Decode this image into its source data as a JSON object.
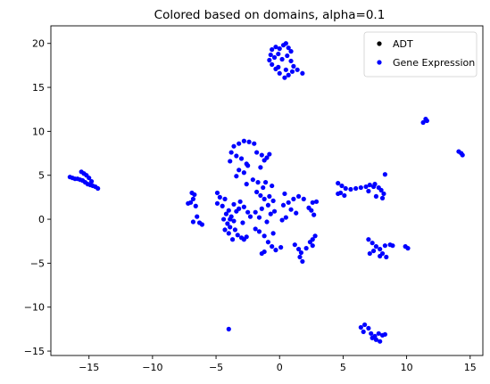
{
  "chart_data": {
    "type": "scatter",
    "title": "Colored based on domains, alpha=0.1",
    "xlabel": "",
    "ylabel": "",
    "xlim": [
      -18,
      16
    ],
    "ylim": [
      -15.5,
      22
    ],
    "xticks": [
      -15,
      -10,
      -5,
      0,
      5,
      10,
      15
    ],
    "yticks": [
      -15,
      -10,
      -5,
      0,
      5,
      10,
      15,
      20
    ],
    "grid": false,
    "legend_position": "top-right",
    "series": [
      {
        "name": "ADT",
        "color": "#000000",
        "points": []
      },
      {
        "name": "Gene Expression",
        "color": "#0000ff",
        "points": [
          [
            -16.5,
            4.8
          ],
          [
            -16.3,
            4.7
          ],
          [
            -16.1,
            4.6
          ],
          [
            -15.9,
            4.6
          ],
          [
            -15.7,
            4.5
          ],
          [
            -15.5,
            4.4
          ],
          [
            -15.3,
            4.2
          ],
          [
            -15.1,
            4.0
          ],
          [
            -14.9,
            3.9
          ],
          [
            -14.7,
            3.8
          ],
          [
            -14.5,
            3.7
          ],
          [
            -14.3,
            3.5
          ],
          [
            -15.6,
            5.4
          ],
          [
            -15.4,
            5.2
          ],
          [
            -15.2,
            5.0
          ],
          [
            -15.0,
            4.7
          ],
          [
            -14.8,
            4.3
          ],
          [
            -7.2,
            1.8
          ],
          [
            -7.0,
            1.9
          ],
          [
            -6.8,
            2.3
          ],
          [
            -6.7,
            2.8
          ],
          [
            -6.9,
            3.0
          ],
          [
            -6.6,
            1.5
          ],
          [
            -6.5,
            0.3
          ],
          [
            -6.3,
            -0.4
          ],
          [
            -6.8,
            -0.3
          ],
          [
            -6.1,
            -0.6
          ],
          [
            -4.9,
            3.0
          ],
          [
            -4.7,
            2.5
          ],
          [
            -4.3,
            2.3
          ],
          [
            -4.9,
            1.8
          ],
          [
            -4.5,
            1.5
          ],
          [
            -4.0,
            1.0
          ],
          [
            -4.2,
            0.6
          ],
          [
            -3.8,
            0.3
          ],
          [
            -4.4,
            0.0
          ],
          [
            -3.6,
            -0.2
          ],
          [
            -4.1,
            -0.5
          ],
          [
            -3.9,
            -0.9
          ],
          [
            -3.5,
            -1.2
          ],
          [
            -4.0,
            -1.6
          ],
          [
            -3.3,
            -1.8
          ],
          [
            -3.0,
            -2.1
          ],
          [
            -2.8,
            -2.3
          ],
          [
            -2.6,
            -2.0
          ],
          [
            -3.4,
            0.9
          ],
          [
            -3.2,
            1.2
          ],
          [
            -3.6,
            1.7
          ],
          [
            -3.1,
            2.0
          ],
          [
            -2.8,
            1.4
          ],
          [
            -2.5,
            0.8
          ],
          [
            -2.3,
            0.3
          ],
          [
            -2.9,
            -0.4
          ],
          [
            -3.7,
            -2.3
          ],
          [
            -3.9,
            0.0
          ],
          [
            -4.3,
            -1.2
          ],
          [
            -3.6,
            8.3
          ],
          [
            -3.2,
            8.6
          ],
          [
            -2.8,
            8.9
          ],
          [
            -2.4,
            8.8
          ],
          [
            -2.0,
            8.6
          ],
          [
            -3.8,
            7.6
          ],
          [
            -3.4,
            7.2
          ],
          [
            -3.0,
            6.9
          ],
          [
            -2.6,
            6.3
          ],
          [
            -3.2,
            5.6
          ],
          [
            -2.8,
            5.3
          ],
          [
            -2.5,
            6.1
          ],
          [
            -3.9,
            6.6
          ],
          [
            -1.8,
            7.6
          ],
          [
            -1.4,
            7.3
          ],
          [
            -1.0,
            7.0
          ],
          [
            -0.8,
            7.4
          ],
          [
            -1.2,
            6.7
          ],
          [
            -1.5,
            5.9
          ],
          [
            -2.1,
            4.5
          ],
          [
            -1.7,
            4.2
          ],
          [
            -2.6,
            4.0
          ],
          [
            -3.4,
            4.9
          ],
          [
            -1.8,
            3.1
          ],
          [
            -1.5,
            2.7
          ],
          [
            -1.2,
            2.3
          ],
          [
            -0.8,
            2.6
          ],
          [
            -0.5,
            2.1
          ],
          [
            -0.9,
            1.6
          ],
          [
            -1.4,
            1.2
          ],
          [
            -1.9,
            0.8
          ],
          [
            -1.6,
            0.2
          ],
          [
            -0.7,
            0.6
          ],
          [
            -0.4,
            0.9
          ],
          [
            -1.0,
            -0.3
          ],
          [
            -0.6,
            3.8
          ],
          [
            -1.1,
            4.2
          ],
          [
            -1.3,
            3.6
          ],
          [
            0.3,
            1.6
          ],
          [
            0.7,
            1.9
          ],
          [
            1.1,
            2.3
          ],
          [
            1.5,
            2.6
          ],
          [
            1.9,
            2.3
          ],
          [
            0.9,
            1.1
          ],
          [
            1.3,
            0.7
          ],
          [
            0.5,
            0.2
          ],
          [
            0.2,
            -0.1
          ],
          [
            0.4,
            2.9
          ],
          [
            2.6,
            1.9
          ],
          [
            2.9,
            2.0
          ],
          [
            2.3,
            1.3
          ],
          [
            2.5,
            1.0
          ],
          [
            2.7,
            0.5
          ],
          [
            -1.6,
            -1.4
          ],
          [
            -1.2,
            -1.9
          ],
          [
            -0.9,
            -2.6
          ],
          [
            -0.6,
            -3.1
          ],
          [
            -0.3,
            -3.5
          ],
          [
            0.1,
            -3.2
          ],
          [
            -1.9,
            -1.1
          ],
          [
            -1.4,
            -3.9
          ],
          [
            -1.2,
            -3.7
          ],
          [
            -0.5,
            -1.6
          ],
          [
            1.2,
            -2.9
          ],
          [
            1.5,
            -3.4
          ],
          [
            1.7,
            -3.8
          ],
          [
            1.6,
            -4.3
          ],
          [
            1.8,
            -4.8
          ],
          [
            2.1,
            -3.3
          ],
          [
            2.4,
            -2.6
          ],
          [
            2.6,
            -2.3
          ],
          [
            2.8,
            -1.9
          ],
          [
            2.6,
            -3.0
          ],
          [
            -0.6,
            19.3
          ],
          [
            -0.3,
            19.6
          ],
          [
            0.0,
            19.4
          ],
          [
            0.3,
            19.8
          ],
          [
            0.5,
            20.0
          ],
          [
            0.7,
            19.5
          ],
          [
            0.9,
            19.1
          ],
          [
            -0.7,
            18.7
          ],
          [
            -0.4,
            18.4
          ],
          [
            -0.1,
            18.8
          ],
          [
            0.2,
            18.2
          ],
          [
            0.6,
            18.6
          ],
          [
            0.9,
            18.0
          ],
          [
            1.1,
            17.4
          ],
          [
            1.0,
            16.8
          ],
          [
            0.7,
            16.4
          ],
          [
            0.4,
            16.1
          ],
          [
            0.0,
            16.6
          ],
          [
            -0.3,
            17.1
          ],
          [
            -0.6,
            17.6
          ],
          [
            -0.8,
            18.1
          ],
          [
            1.4,
            17.0
          ],
          [
            1.8,
            16.6
          ],
          [
            -0.1,
            17.3
          ],
          [
            0.5,
            17.0
          ],
          [
            4.6,
            4.1
          ],
          [
            4.9,
            3.8
          ],
          [
            5.2,
            3.5
          ],
          [
            5.6,
            3.4
          ],
          [
            6.0,
            3.5
          ],
          [
            6.4,
            3.6
          ],
          [
            6.8,
            3.7
          ],
          [
            7.1,
            3.9
          ],
          [
            7.4,
            3.7
          ],
          [
            7.8,
            3.6
          ],
          [
            8.0,
            3.3
          ],
          [
            8.2,
            2.9
          ],
          [
            8.1,
            2.4
          ],
          [
            4.8,
            3.0
          ],
          [
            5.1,
            2.7
          ],
          [
            4.6,
            2.9
          ],
          [
            7.0,
            3.2
          ],
          [
            7.5,
            4.0
          ],
          [
            8.3,
            5.1
          ],
          [
            7.6,
            2.6
          ],
          [
            7.0,
            -2.3
          ],
          [
            7.3,
            -2.7
          ],
          [
            7.6,
            -3.1
          ],
          [
            7.4,
            -3.6
          ],
          [
            7.9,
            -3.4
          ],
          [
            8.3,
            -3.0
          ],
          [
            8.7,
            -2.9
          ],
          [
            8.9,
            -3.0
          ],
          [
            8.1,
            -3.9
          ],
          [
            7.9,
            -4.2
          ],
          [
            8.4,
            -4.3
          ],
          [
            7.1,
            -3.9
          ],
          [
            9.9,
            -3.1
          ],
          [
            10.1,
            -3.3
          ],
          [
            11.3,
            11.0
          ],
          [
            11.5,
            11.4
          ],
          [
            11.6,
            11.2
          ],
          [
            14.1,
            7.7
          ],
          [
            14.3,
            7.5
          ],
          [
            14.4,
            7.3
          ],
          [
            -4.0,
            -12.5
          ],
          [
            6.4,
            -12.3
          ],
          [
            6.7,
            -12.0
          ],
          [
            7.0,
            -12.4
          ],
          [
            6.6,
            -12.8
          ],
          [
            7.2,
            -13.0
          ],
          [
            7.5,
            -13.3
          ],
          [
            7.8,
            -13.0
          ],
          [
            8.1,
            -13.2
          ],
          [
            7.6,
            -13.7
          ],
          [
            7.3,
            -13.5
          ],
          [
            7.9,
            -13.9
          ],
          [
            8.3,
            -13.1
          ]
        ]
      }
    ]
  }
}
